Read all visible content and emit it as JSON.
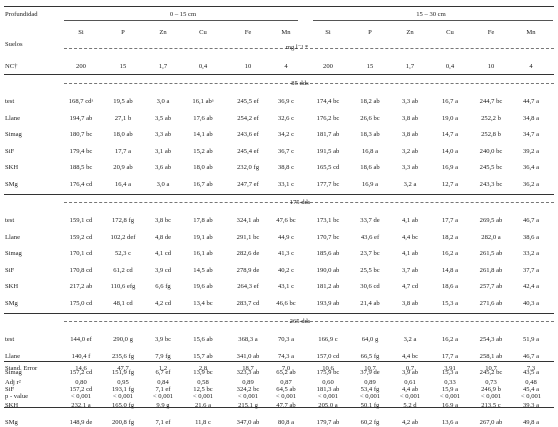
{
  "header": {
    "profundidad": "Profundidad",
    "depth1": "0 – 15 cm",
    "depth2": "15 – 30 cm",
    "suelos": "Suelos",
    "elements": [
      "Si",
      "P",
      "Zn",
      "Cu",
      "Fe",
      "Mn",
      "Si",
      "P",
      "Zn",
      "Cu",
      "Fe",
      "Mn"
    ],
    "unit": "mg.l⁻¹ *",
    "nc_label": "NC†",
    "nc_values": [
      "200",
      "15",
      "1,7",
      "0,4",
      "10",
      "4",
      "200",
      "15",
      "1,7",
      "0,4",
      "10",
      "4"
    ]
  },
  "sections": [
    {
      "label": "85 dds",
      "rows": [
        {
          "name": "test",
          "values": [
            "168,7 cdᵃ",
            "19,5 ab",
            "3,0 a",
            "16,1 abᵃ",
            "245,5 ef",
            "36,9 c",
            "174,4 bc",
            "18,2 ab",
            "3,3 ab",
            "16,7 a",
            "244,7 bc",
            "44,7 a"
          ]
        },
        {
          "name": "Llane",
          "values": [
            "194,7 ab",
            "27,1 b",
            "3,5 ab",
            "17,6 ab",
            "254,2 ef",
            "32,6 c",
            "176,2 bc",
            "26,6 bc",
            "3,8 ab",
            "19,0 a",
            "252,2 b",
            "34,8 a"
          ]
        },
        {
          "name": "Simag",
          "values": [
            "180,7 bc",
            "18,0 ab",
            "3,3 ab",
            "14,1 ab",
            "243,6 ef",
            "34,2 c",
            "181,7 ab",
            "18,3 ab",
            "3,8 ab",
            "14,7 a",
            "252,8 b",
            "34,7 a"
          ]
        },
        {
          "name": "SiF",
          "values": [
            "179,4 bc",
            "17,7 a",
            "3,1 ab",
            "15,2 ab",
            "245,4 ef",
            "36,7 c",
            "191,5 ab",
            "16,8 a",
            "3,2 ab",
            "14,0 a",
            "240,0 bc",
            "39,2 a"
          ]
        },
        {
          "name": "SKH",
          "values": [
            "188,5 bc",
            "20,9 ab",
            "3,6 ab",
            "18,0 ab",
            "232,0 fg",
            "38,8 c",
            "165,5 cd",
            "18,6 ab",
            "3,3 ab",
            "16,9 a",
            "245,5 bc",
            "36,4 a"
          ]
        },
        {
          "name": "SMg",
          "values": [
            "176,4 cd",
            "16,4 a",
            "3,0 a",
            "16,7 ab",
            "247,7 ef",
            "33,1 c",
            "177,7 bc",
            "16,9 a",
            "3,2 a",
            "12,7 a",
            "243,3 bc",
            "36,2 a"
          ]
        }
      ]
    },
    {
      "label": "175 dds",
      "rows": [
        {
          "name": "test",
          "values": [
            "159,1 cd",
            "172,8 fg",
            "3,8 bc",
            "17,8 ab",
            "324,1 ab",
            "47,6 bc",
            "173,1 bc",
            "33,7 de",
            "4,1 ab",
            "17,7 a",
            "269,5 ab",
            "46,7 a"
          ]
        },
        {
          "name": "Llane",
          "values": [
            "159,2 cd",
            "102,2 def",
            "4,8 de",
            "19,1 ab",
            "291,1 bc",
            "44,9 c",
            "170,7 bc",
            "43,6 ef",
            "4,4 bc",
            "18,2 a",
            "282,0 a",
            "38,6 a"
          ]
        },
        {
          "name": "Simag",
          "values": [
            "170,1 cd",
            "52,3 c",
            "4,1 cd",
            "16,1 ab",
            "282,6 de",
            "41,3 c",
            "185,6 ab",
            "23,7 bc",
            "4,1 ab",
            "16,2 a",
            "261,5 ab",
            "33,2 a"
          ]
        },
        {
          "name": "SiF",
          "values": [
            "170,8 cd",
            "61,2 cd",
            "3,9 cd",
            "14,5 ab",
            "278,9 de",
            "40,2 c",
            "190,0 ab",
            "25,5 bc",
            "3,7 ab",
            "14,8 a",
            "261,8 ab",
            "37,7 a"
          ]
        },
        {
          "name": "SKH",
          "values": [
            "217,2 ab",
            "110,6 efg",
            "6,6 fg",
            "19,6 ab",
            "264,3 ef",
            "43,1 c",
            "181,2 ab",
            "30,6 cd",
            "4,7 cd",
            "18,6 a",
            "257,7 ab",
            "42,4 a"
          ]
        },
        {
          "name": "SMg",
          "values": [
            "175,0 cd",
            "48,1 cd",
            "4,2 cd",
            "13,4 bc",
            "283,7 cd",
            "46,6 bc",
            "193,9 ab",
            "21,4 ab",
            "3,8 ab",
            "15,3 a",
            "271,6 ab",
            "40,3 a"
          ]
        }
      ]
    },
    {
      "label": "265 dds",
      "rows": [
        {
          "name": "test",
          "values": [
            "144,0 ef",
            "290,0 g",
            "3,9 bc",
            "15,6 ab",
            "368,3 a",
            "70,3 a",
            "166,9 c",
            "64,0 g",
            "3,2 a",
            "16,2 a",
            "254,3 ab",
            "51,9 a"
          ]
        },
        {
          "name": "Llane",
          "values": [
            "140,4 f",
            "235,6 fg",
            "7,9 fg",
            "15,7 ab",
            "341,0 ab",
            "74,3 a",
            "157,0 cd",
            "66,5 fg",
            "4,4 bc",
            "17,7 a",
            "258,1 ab",
            "46,7 a"
          ]
        },
        {
          "name": "Simag",
          "values": [
            "157,2 cd",
            "151,9 fg",
            "6,7 ef",
            "13,9 bc",
            "323,3 ab",
            "65,2 ab",
            "175,9 bc",
            "37,9 de",
            "3,9 ab",
            "15,3 a",
            "245,2 bc",
            "43,5 a"
          ]
        },
        {
          "name": "SiF",
          "values": [
            "157,2 cd",
            "193,1 fg",
            "7,1 ef",
            "12,5 bc",
            "324,2 bc",
            "64,5 ab",
            "181,3 ab",
            "53,4 fg",
            "4,4 ab",
            "15,9 a",
            "246,9 b",
            "45,4 a"
          ]
        },
        {
          "name": "SKH",
          "values": [
            "232,1 a",
            "165,0 fg",
            "9,9 g",
            "21,6 a",
            "215,1 g",
            "47,7 ab",
            "205,0 a",
            "50,1 fg",
            "5,2 d",
            "16,9 a",
            "213,5 c",
            "39,3 a"
          ]
        },
        {
          "name": "SMg",
          "values": [
            "148,9 de",
            "200,8 fg",
            "7,1 ef",
            "11,8 c",
            "347,0 ab",
            "80,8 a",
            "179,7 ab",
            "60,2 fg",
            "4,2 ab",
            "13,6 a",
            "267,0 ab",
            "49,8 a"
          ]
        }
      ]
    }
  ],
  "stats": [
    {
      "name": "Stand. Error",
      "values": [
        "14,6",
        "47,7",
        "1,2",
        "2,8",
        "18,7",
        "7,0",
        "10,6",
        "10,7",
        "0,7",
        "3,91",
        "10,7",
        "7,3"
      ]
    },
    {
      "name": "Adj r²",
      "values": [
        "0,80",
        "0,95",
        "0,84",
        "0,58",
        "0,89",
        "0,87",
        "0,60",
        "0,89",
        "0,61",
        "0,33",
        "0,73",
        "0,48"
      ]
    },
    {
      "name": "p - value",
      "values": [
        "< 0,001",
        "< 0,001",
        "< 0,001",
        "< 0,001",
        "< 0,001",
        "< 0,001",
        "< 0,001",
        "< 0,001",
        "< 0,001",
        "< 0,001",
        "< 0,001",
        "< 0,001"
      ]
    }
  ]
}
